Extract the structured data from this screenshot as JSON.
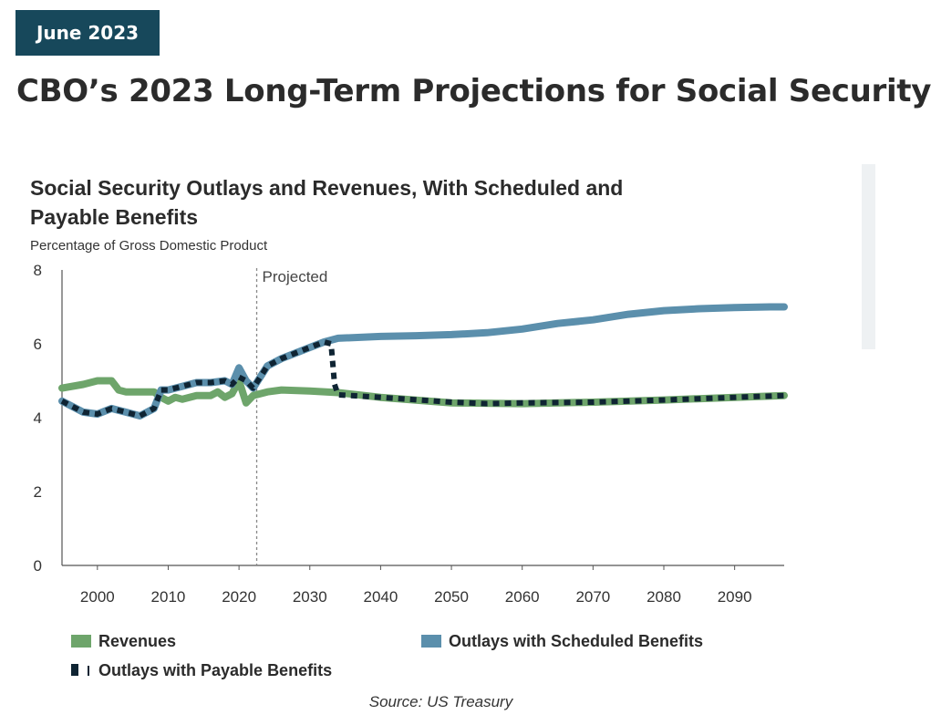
{
  "header": {
    "date_badge": "June 2023",
    "title": "CBO’s 2023 Long-Term Projections for Social Security"
  },
  "source": "Source: US Treasury",
  "colors": {
    "badge_bg": "#17485b",
    "revenues": "#6ea56b",
    "scheduled": "#5b8fac",
    "payable": "#0f2433"
  },
  "chart_data": {
    "type": "line",
    "title": "Social Security Outlays and Revenues, With Scheduled and Payable Benefits",
    "ylabel": "Percentage of Gross Domestic Product",
    "annotation": "Projected",
    "projection_start": 2022.5,
    "xlim": [
      1995,
      2097
    ],
    "ylim": [
      0,
      8
    ],
    "xticks": [
      2000,
      2010,
      2020,
      2030,
      2040,
      2050,
      2060,
      2070,
      2080,
      2090
    ],
    "yticks": [
      0,
      2,
      4,
      6,
      8
    ],
    "grid": false,
    "legend_position": "bottom",
    "series": [
      {
        "name": "Revenues",
        "style": "solid",
        "color": "#6ea56b",
        "x": [
          1995,
          1998,
          2000,
          2002,
          2003,
          2004,
          2006,
          2008,
          2009,
          2010,
          2011,
          2012,
          2014,
          2016,
          2017,
          2018,
          2019,
          2020,
          2021,
          2022,
          2024,
          2026,
          2030,
          2034,
          2040,
          2050,
          2060,
          2070,
          2080,
          2090,
          2097
        ],
        "y": [
          4.8,
          4.9,
          5.0,
          5.0,
          4.75,
          4.7,
          4.7,
          4.7,
          4.55,
          4.45,
          4.55,
          4.5,
          4.6,
          4.6,
          4.7,
          4.55,
          4.65,
          5.0,
          4.4,
          4.6,
          4.7,
          4.75,
          4.72,
          4.68,
          4.55,
          4.4,
          4.38,
          4.42,
          4.48,
          4.55,
          4.6
        ]
      },
      {
        "name": "Outlays with Scheduled Benefits",
        "style": "solid",
        "color": "#5b8fac",
        "x": [
          1995,
          1998,
          2000,
          2002,
          2004,
          2006,
          2008,
          2009,
          2010,
          2012,
          2014,
          2016,
          2018,
          2019,
          2020,
          2021,
          2022,
          2024,
          2026,
          2028,
          2030,
          2032,
          2034,
          2040,
          2045,
          2050,
          2055,
          2060,
          2065,
          2070,
          2075,
          2080,
          2085,
          2090,
          2095,
          2097
        ],
        "y": [
          4.45,
          4.15,
          4.1,
          4.25,
          4.15,
          4.05,
          4.25,
          4.75,
          4.75,
          4.85,
          4.95,
          4.95,
          5.0,
          4.9,
          5.35,
          5.0,
          4.8,
          5.4,
          5.6,
          5.75,
          5.9,
          6.05,
          6.15,
          6.2,
          6.22,
          6.25,
          6.3,
          6.4,
          6.55,
          6.65,
          6.8,
          6.9,
          6.95,
          6.98,
          7.0,
          7.0
        ]
      },
      {
        "name": "Outlays with Payable Benefits",
        "style": "dashed",
        "color": "#0f2433",
        "x": [
          1995,
          1998,
          2000,
          2002,
          2004,
          2006,
          2008,
          2009,
          2010,
          2012,
          2014,
          2016,
          2018,
          2019,
          2020,
          2021,
          2022,
          2024,
          2026,
          2028,
          2030,
          2032,
          2033,
          2033.5,
          2034,
          2040,
          2050,
          2055,
          2060,
          2070,
          2080,
          2090,
          2097
        ],
        "y": [
          4.45,
          4.15,
          4.1,
          4.25,
          4.15,
          4.05,
          4.25,
          4.75,
          4.75,
          4.85,
          4.95,
          4.95,
          5.0,
          4.9,
          5.1,
          5.0,
          4.8,
          5.4,
          5.6,
          5.75,
          5.9,
          6.05,
          6.0,
          4.9,
          4.62,
          4.55,
          4.42,
          4.38,
          4.4,
          4.42,
          4.48,
          4.55,
          4.6
        ]
      }
    ]
  }
}
